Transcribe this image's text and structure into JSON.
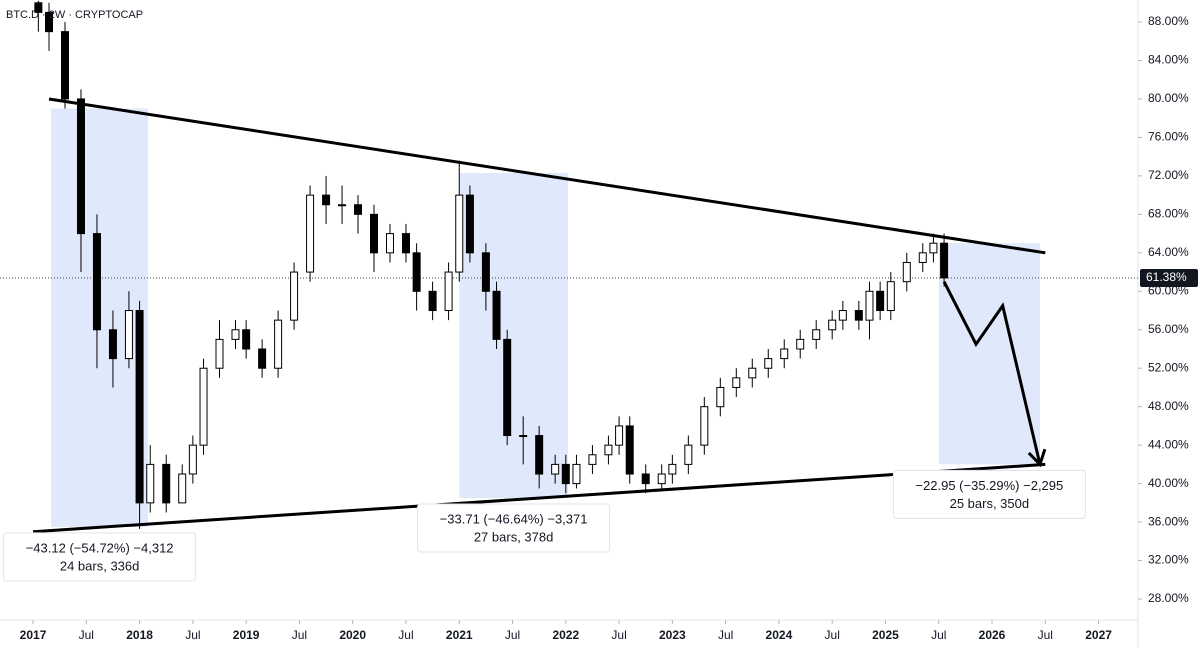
{
  "chart_data": {
    "type": "candlestick",
    "title": "BTC.D · 2W · CRYPTOCAP",
    "xlim": [
      2016.69,
      2027.37
    ],
    "ylim": [
      25.82,
      90.29
    ],
    "yticks": [
      {
        "value": 28,
        "label": "28.00%"
      },
      {
        "value": 32,
        "label": "32.00%"
      },
      {
        "value": 36,
        "label": "36.00%"
      },
      {
        "value": 40,
        "label": "40.00%"
      },
      {
        "value": 44,
        "label": "44.00%"
      },
      {
        "value": 48,
        "label": "48.00%"
      },
      {
        "value": 52,
        "label": "52.00%"
      },
      {
        "value": 56,
        "label": "56.00%"
      },
      {
        "value": 60,
        "label": "60.00%"
      },
      {
        "value": 64,
        "label": "64.00%"
      },
      {
        "value": 68,
        "label": "68.00%"
      },
      {
        "value": 72,
        "label": "72.00%"
      },
      {
        "value": 76,
        "label": "76.00%"
      },
      {
        "value": 80,
        "label": "80.00%"
      },
      {
        "value": 84,
        "label": "84.00%"
      },
      {
        "value": 88,
        "label": "88.00%"
      }
    ],
    "xticks": [
      {
        "value": 2017,
        "label": "2017"
      },
      {
        "value": 2017.5,
        "label": "Jul"
      },
      {
        "value": 2018,
        "label": "2018"
      },
      {
        "value": 2018.5,
        "label": "Jul"
      },
      {
        "value": 2019,
        "label": "2019"
      },
      {
        "value": 2019.5,
        "label": "Jul"
      },
      {
        "value": 2020,
        "label": "2020"
      },
      {
        "value": 2020.5,
        "label": "Jul"
      },
      {
        "value": 2021,
        "label": "2021"
      },
      {
        "value": 2021.5,
        "label": "Jul"
      },
      {
        "value": 2022,
        "label": "2022"
      },
      {
        "value": 2022.5,
        "label": "Jul"
      },
      {
        "value": 2023,
        "label": "2023"
      },
      {
        "value": 2023.5,
        "label": "Jul"
      },
      {
        "value": 2024,
        "label": "2024"
      },
      {
        "value": 2024.5,
        "label": "Jul"
      },
      {
        "value": 2025,
        "label": "2025"
      },
      {
        "value": 2025.5,
        "label": "Jul"
      },
      {
        "value": 2026,
        "label": "2026"
      },
      {
        "value": 2026.5,
        "label": "Jul"
      },
      {
        "value": 2027,
        "label": "2027"
      }
    ],
    "x": [
      2017.05,
      2017.15,
      2017.3,
      2017.45,
      2017.6,
      2017.75,
      2017.9,
      2018.0,
      2018.1,
      2018.25,
      2018.4,
      2018.5,
      2018.6,
      2018.75,
      2018.9,
      2019.0,
      2019.15,
      2019.3,
      2019.45,
      2019.6,
      2019.75,
      2019.9,
      2020.05,
      2020.2,
      2020.35,
      2020.5,
      2020.6,
      2020.75,
      2020.9,
      2021.0,
      2021.1,
      2021.25,
      2021.35,
      2021.45,
      2021.6,
      2021.75,
      2021.9,
      2022.0,
      2022.1,
      2022.25,
      2022.4,
      2022.5,
      2022.6,
      2022.75,
      2022.9,
      2023.0,
      2023.15,
      2023.3,
      2023.45,
      2023.6,
      2023.75,
      2023.9,
      2024.05,
      2024.2,
      2024.35,
      2024.5,
      2024.6,
      2024.75,
      2024.85,
      2024.95,
      2025.05,
      2025.2,
      2025.35,
      2025.45,
      2025.55
    ],
    "open": [
      90,
      89,
      87,
      80,
      66,
      56,
      53,
      58,
      38,
      42,
      38,
      41,
      44,
      52,
      55,
      56,
      54,
      52,
      57,
      62,
      70,
      69,
      69,
      68,
      64,
      66,
      64,
      60,
      58,
      62,
      70,
      64,
      60,
      55,
      45,
      45,
      41,
      42,
      40,
      42,
      43,
      44,
      46,
      41,
      40,
      41,
      42,
      44,
      48,
      50,
      51,
      52,
      53,
      54,
      55,
      56,
      57,
      58,
      57,
      60,
      58,
      61,
      63,
      64,
      65
    ],
    "high": [
      90.2,
      90,
      88,
      81,
      68,
      58,
      60,
      59,
      44,
      43,
      42,
      45,
      53,
      57,
      57,
      57,
      55,
      58,
      63,
      71,
      72,
      71,
      70,
      69,
      67,
      67,
      65,
      61,
      63,
      73.6,
      71,
      65,
      61,
      56,
      47,
      46,
      43,
      43,
      43,
      44,
      45,
      47,
      47,
      42,
      42,
      43,
      45,
      49,
      51,
      52,
      53,
      54,
      55,
      56,
      57,
      58,
      59,
      59,
      61,
      61,
      62,
      64,
      65,
      66,
      66
    ],
    "low": [
      87,
      85,
      79,
      62,
      52,
      50,
      52,
      35.3,
      37,
      37,
      38,
      40,
      43,
      51,
      54,
      53,
      51,
      51,
      56,
      61,
      67,
      67,
      66,
      62,
      63,
      63,
      58,
      57,
      57,
      61,
      63,
      58,
      54,
      44,
      42,
      39.5,
      40,
      39,
      39.5,
      41,
      42,
      43,
      40,
      39,
      39.5,
      40,
      41,
      43,
      47,
      49,
      50,
      51,
      52,
      53,
      54,
      55,
      56,
      56,
      55,
      57,
      57,
      60,
      62,
      63,
      60.5
    ],
    "close": [
      89,
      87,
      80,
      66,
      56,
      53,
      58,
      38,
      42,
      38,
      41,
      44,
      52,
      55,
      56,
      54,
      52,
      57,
      62,
      70,
      69,
      69,
      68,
      64,
      66,
      64,
      60,
      58,
      62,
      70,
      64,
      60,
      55,
      45,
      45,
      41,
      42,
      40,
      42,
      43,
      44,
      46,
      41,
      40,
      41,
      42,
      44,
      48,
      50,
      51,
      52,
      53,
      54,
      55,
      56,
      57,
      58,
      57,
      60,
      58,
      61,
      63,
      64,
      65,
      61.4
    ],
    "last_value": {
      "value": 61.38,
      "label": "61.38%"
    },
    "trendlines": [
      {
        "x": [
          2017.15,
          2026.5
        ],
        "y": [
          80,
          64
        ]
      },
      {
        "x": [
          2017.0,
          2026.5
        ],
        "y": [
          35,
          42
        ]
      }
    ],
    "projection": {
      "x": [
        2025.55,
        2025.85,
        2026.1,
        2026.45
      ],
      "y": [
        61,
        54.5,
        58.5,
        42
      ]
    },
    "ranges": [
      {
        "x": [
          2017.17,
          2018.08
        ],
        "y": [
          35.5,
          79
        ],
        "label": [
          "−43.12 (−54.72%) −4,312",
          "24 bars, 336d"
        ]
      },
      {
        "x": [
          2021.0,
          2022.02
        ],
        "y": [
          38.5,
          72.3
        ],
        "label": [
          "−33.71 (−46.64%) −3,371",
          "27 bars, 378d"
        ]
      },
      {
        "x": [
          2025.5,
          2026.45
        ],
        "y": [
          42,
          65
        ],
        "label": [
          "−22.95 (−35.29%) −2,295",
          "25 bars, 350d"
        ]
      }
    ]
  }
}
